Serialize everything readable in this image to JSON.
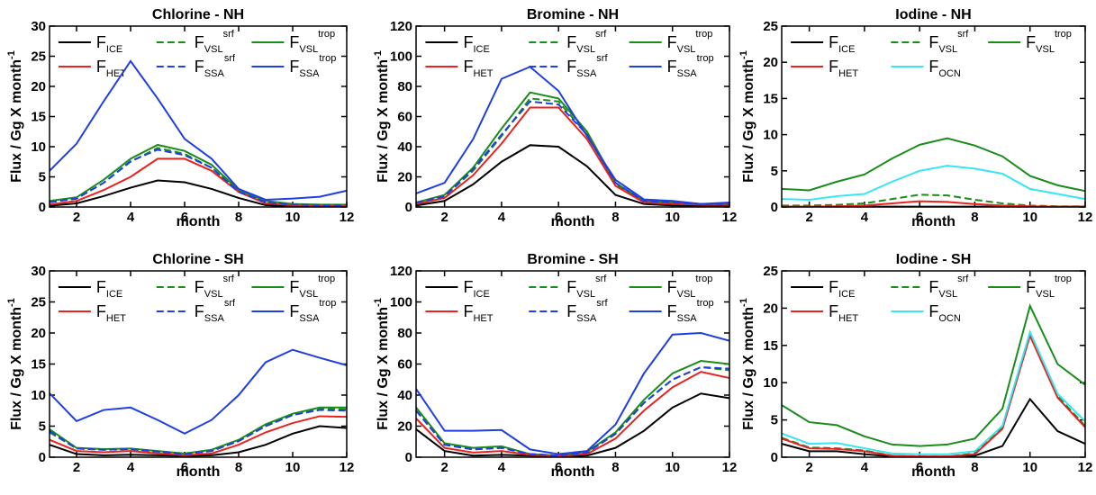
{
  "chart_data": [
    {
      "type": "line",
      "title": "Chlorine - NH",
      "xlabel": "month",
      "ylabel": "Flux / Gg X month",
      "ylabel_sup": "-1",
      "x": [
        1,
        2,
        3,
        4,
        5,
        6,
        7,
        8,
        9,
        10,
        11,
        12
      ],
      "xlim": [
        1,
        12
      ],
      "xticks": [
        2,
        4,
        6,
        8,
        10,
        12
      ],
      "ylim": [
        0,
        30
      ],
      "yticks": [
        0,
        5,
        10,
        15,
        20,
        25,
        30
      ],
      "series": [
        {
          "name": "F",
          "sub": "ICE",
          "color": "#000000",
          "dashed": false,
          "values": [
            0.2,
            0.6,
            1.8,
            3.2,
            4.4,
            4.1,
            3.0,
            1.5,
            0.3,
            0.1,
            0.1,
            0.1
          ]
        },
        {
          "name": "F",
          "sub": "VSL",
          "sup": "srf",
          "color": "#1a8c1a",
          "dashed": true,
          "values": [
            0.8,
            1.4,
            4,
            7.5,
            9.8,
            8.8,
            6.5,
            2.6,
            0.8,
            0.4,
            0.3,
            0.3
          ]
        },
        {
          "name": "F",
          "sub": "VSL",
          "sup": "trop",
          "color": "#1a8c1a",
          "dashed": false,
          "values": [
            1,
            1.6,
            4.5,
            8,
            10.3,
            9.3,
            7,
            2.8,
            1,
            0.5,
            0.4,
            0.4
          ]
        },
        {
          "name": "F",
          "sub": "HET",
          "color": "#e8231f",
          "dashed": false,
          "values": [
            0.4,
            1.0,
            2.8,
            5,
            8,
            8,
            6,
            2.5,
            0.6,
            0.3,
            0.2,
            0.2
          ]
        },
        {
          "name": "F",
          "sub": "SSA",
          "sup": "srf",
          "color": "#1f3fe0",
          "dashed": true,
          "values": [
            0.8,
            1.4,
            4,
            7.6,
            9.5,
            8.6,
            6.5,
            2.5,
            0.8,
            0.4,
            0.3,
            0.3
          ]
        },
        {
          "name": "F",
          "sub": "SSA",
          "sup": "trop",
          "color": "#1f3fe0",
          "dashed": false,
          "values": [
            6,
            10.5,
            17.5,
            24.2,
            18,
            11.3,
            8,
            3,
            1.2,
            1.4,
            1.7,
            2.7
          ]
        }
      ]
    },
    {
      "type": "line",
      "title": "Bromine - NH",
      "xlabel": "month",
      "ylabel": "Flux / Gg X month",
      "ylabel_sup": "-1",
      "x": [
        1,
        2,
        3,
        4,
        5,
        6,
        7,
        8,
        9,
        10,
        11,
        12
      ],
      "xlim": [
        1,
        12
      ],
      "xticks": [
        2,
        4,
        6,
        8,
        10,
        12
      ],
      "ylim": [
        0,
        120
      ],
      "yticks": [
        0,
        20,
        40,
        60,
        80,
        100,
        120
      ],
      "series": [
        {
          "name": "F",
          "sub": "ICE",
          "color": "#000000",
          "dashed": false,
          "values": [
            1,
            4,
            15,
            30,
            41,
            40,
            27,
            8,
            2,
            1,
            1,
            1
          ]
        },
        {
          "name": "F",
          "sub": "VSL",
          "sup": "srf",
          "color": "#1a8c1a",
          "dashed": true,
          "values": [
            3,
            7,
            24,
            47,
            72,
            70,
            48,
            15,
            4,
            3,
            2,
            2
          ]
        },
        {
          "name": "F",
          "sub": "VSL",
          "sup": "trop",
          "color": "#1a8c1a",
          "dashed": false,
          "values": [
            3,
            8,
            26,
            52,
            76,
            72,
            50,
            16,
            4,
            3,
            2,
            2
          ]
        },
        {
          "name": "F",
          "sub": "HET",
          "color": "#e8231f",
          "dashed": false,
          "values": [
            2,
            6,
            21,
            42,
            66,
            66,
            45,
            14,
            3,
            2,
            1.5,
            1.5
          ]
        },
        {
          "name": "F",
          "sub": "SSA",
          "sup": "srf",
          "color": "#1f3fe0",
          "dashed": true,
          "values": [
            3,
            7,
            25,
            48,
            70,
            68,
            48,
            16,
            4,
            3,
            2,
            2
          ]
        },
        {
          "name": "F",
          "sub": "SSA",
          "sup": "trop",
          "color": "#1f3fe0",
          "dashed": false,
          "values": [
            9,
            16,
            45,
            85,
            93,
            77,
            47,
            18,
            5,
            4,
            2,
            3
          ]
        }
      ]
    },
    {
      "type": "line",
      "title": "Iodine - NH",
      "xlabel": "month",
      "ylabel": "Flux / Gg X month",
      "ylabel_sup": "-1",
      "x": [
        1,
        2,
        3,
        4,
        5,
        6,
        7,
        8,
        9,
        10,
        11,
        12
      ],
      "xlim": [
        1,
        12
      ],
      "xticks": [
        2,
        4,
        6,
        8,
        10,
        12
      ],
      "ylim": [
        0,
        25
      ],
      "yticks": [
        0,
        5,
        10,
        15,
        20,
        25
      ],
      "series": [
        {
          "name": "F",
          "sub": "ICE",
          "color": "#000000",
          "dashed": false,
          "values": [
            0.05,
            0.05,
            0.05,
            0.05,
            0.05,
            0.05,
            0.05,
            0.05,
            0.05,
            0.05,
            0.05,
            0.05
          ]
        },
        {
          "name": "F",
          "sub": "VSL",
          "sup": "srf",
          "color": "#1a8c1a",
          "dashed": true,
          "values": [
            0.2,
            0.2,
            0.3,
            0.5,
            1.1,
            1.7,
            1.6,
            1.0,
            0.5,
            0.2,
            0.1,
            0.1
          ]
        },
        {
          "name": "F",
          "sub": "VSL",
          "sup": "trop",
          "color": "#1a8c1a",
          "dashed": false,
          "values": [
            2.5,
            2.3,
            3.5,
            4.5,
            6.7,
            8.6,
            9.5,
            8.5,
            7,
            4.3,
            3,
            2.2
          ]
        },
        {
          "name": "F",
          "sub": "HET",
          "color": "#e8231f",
          "dashed": false,
          "values": [
            0.05,
            0.05,
            0.1,
            0.2,
            0.5,
            0.8,
            0.7,
            0.4,
            0.2,
            0.1,
            0.05,
            0.05
          ]
        },
        {
          "name": "F",
          "sub": "OCN",
          "color": "#33e6f0",
          "dashed": false,
          "values": [
            1.1,
            1,
            1.5,
            1.8,
            3.5,
            5,
            5.7,
            5.3,
            4.6,
            2.5,
            1.8,
            1.1
          ]
        }
      ]
    },
    {
      "type": "line",
      "title": "Chlorine - SH",
      "xlabel": "month",
      "ylabel": "Flux / Gg X month",
      "ylabel_sup": "-1",
      "x": [
        1,
        2,
        3,
        4,
        5,
        6,
        7,
        8,
        9,
        10,
        11,
        12
      ],
      "xlim": [
        1,
        12
      ],
      "xticks": [
        2,
        4,
        6,
        8,
        10,
        12
      ],
      "ylim": [
        0,
        30
      ],
      "yticks": [
        0,
        5,
        10,
        15,
        20,
        25,
        30
      ],
      "series": [
        {
          "name": "F",
          "sub": "ICE",
          "color": "#000000",
          "dashed": false,
          "values": [
            2,
            0.5,
            0.3,
            0.4,
            0.3,
            0.2,
            0.3,
            0.8,
            2,
            3.8,
            5,
            4.7
          ]
        },
        {
          "name": "F",
          "sub": "VSL",
          "sup": "srf",
          "color": "#1a8c1a",
          "dashed": true,
          "values": [
            4,
            1.4,
            1.2,
            1.3,
            0.9,
            0.5,
            1,
            2.6,
            5,
            6.8,
            7.8,
            7.7
          ]
        },
        {
          "name": "F",
          "sub": "VSL",
          "sup": "trop",
          "color": "#1a8c1a",
          "dashed": false,
          "values": [
            4.5,
            1.5,
            1.3,
            1.4,
            1,
            0.6,
            1.2,
            2.8,
            5.3,
            7,
            8,
            8
          ]
        },
        {
          "name": "F",
          "sub": "HET",
          "color": "#e8231f",
          "dashed": false,
          "values": [
            2.8,
            1,
            0.8,
            1,
            0.6,
            0.3,
            0.6,
            2,
            4,
            5.5,
            6.6,
            6.5
          ]
        },
        {
          "name": "F",
          "sub": "SSA",
          "sup": "srf",
          "color": "#1f3fe0",
          "dashed": true,
          "values": [
            4.2,
            1.4,
            1.2,
            1.3,
            0.9,
            0.5,
            1,
            2.6,
            5,
            6.8,
            7.6,
            7.5
          ]
        },
        {
          "name": "F",
          "sub": "SSA",
          "sup": "trop",
          "color": "#1f3fe0",
          "dashed": false,
          "values": [
            10.3,
            5.8,
            7.6,
            8,
            6,
            3.8,
            6,
            10,
            15.3,
            17.3,
            16,
            14.8
          ]
        }
      ]
    },
    {
      "type": "line",
      "title": "Bromine - SH",
      "xlabel": "month",
      "ylabel": "Flux / Gg X month",
      "ylabel_sup": "-1",
      "x": [
        1,
        2,
        3,
        4,
        5,
        6,
        7,
        8,
        9,
        10,
        11,
        12
      ],
      "xlim": [
        1,
        12
      ],
      "xticks": [
        2,
        4,
        6,
        8,
        10,
        12
      ],
      "ylim": [
        0,
        120
      ],
      "yticks": [
        0,
        20,
        40,
        60,
        80,
        100,
        120
      ],
      "series": [
        {
          "name": "F",
          "sub": "ICE",
          "color": "#000000",
          "dashed": false,
          "values": [
            18,
            4,
            1,
            1.5,
            1,
            0.5,
            1,
            6,
            17,
            32,
            41,
            38
          ]
        },
        {
          "name": "F",
          "sub": "VSL",
          "sup": "srf",
          "color": "#1a8c1a",
          "dashed": true,
          "values": [
            30,
            8,
            5,
            6,
            2,
            1,
            3,
            15,
            35,
            50,
            58,
            56
          ]
        },
        {
          "name": "F",
          "sub": "VSL",
          "sup": "trop",
          "color": "#1a8c1a",
          "dashed": false,
          "values": [
            32,
            9,
            6,
            7,
            2,
            1,
            3.5,
            16,
            37,
            54,
            62,
            60
          ]
        },
        {
          "name": "F",
          "sub": "HET",
          "color": "#e8231f",
          "dashed": false,
          "values": [
            25,
            6,
            3,
            4,
            1.5,
            0.8,
            2,
            12,
            30,
            45,
            55,
            51
          ]
        },
        {
          "name": "F",
          "sub": "SSA",
          "sup": "srf",
          "color": "#1f3fe0",
          "dashed": true,
          "values": [
            30,
            8,
            5,
            6,
            2,
            1,
            3,
            15,
            35,
            50,
            58,
            57
          ]
        },
        {
          "name": "F",
          "sub": "SSA",
          "sup": "trop",
          "color": "#1f3fe0",
          "dashed": false,
          "values": [
            44,
            17,
            17,
            17.5,
            5,
            2,
            4,
            21,
            54,
            79,
            80,
            75
          ]
        }
      ]
    },
    {
      "type": "line",
      "title": "Iodine - SH",
      "xlabel": "month",
      "ylabel": "Flux / Gg X month",
      "ylabel_sup": "-1",
      "x": [
        1,
        2,
        3,
        4,
        5,
        6,
        7,
        8,
        9,
        10,
        11,
        12
      ],
      "xlim": [
        1,
        12
      ],
      "xticks": [
        2,
        4,
        6,
        8,
        10,
        12
      ],
      "ylim": [
        0,
        25
      ],
      "yticks": [
        0,
        5,
        10,
        15,
        20,
        25
      ],
      "series": [
        {
          "name": "F",
          "sub": "ICE",
          "color": "#000000",
          "dashed": false,
          "values": [
            1.8,
            0.8,
            0.8,
            0.4,
            0.1,
            0.05,
            0.05,
            0.2,
            1.5,
            7.8,
            3.5,
            1.8
          ]
        },
        {
          "name": "F",
          "sub": "VSL",
          "sup": "srf",
          "color": "#1a8c1a",
          "dashed": true,
          "values": [
            2.6,
            1.3,
            1.2,
            0.9,
            0.2,
            0.1,
            0.1,
            0.5,
            4,
            16.5,
            8.2,
            4.2
          ]
        },
        {
          "name": "F",
          "sub": "VSL",
          "sup": "trop",
          "color": "#1a8c1a",
          "dashed": false,
          "values": [
            7,
            4.7,
            4.3,
            2.8,
            1.7,
            1.5,
            1.7,
            2.5,
            6.5,
            20.3,
            12.5,
            9.7
          ]
        },
        {
          "name": "F",
          "sub": "HET",
          "color": "#e8231f",
          "dashed": false,
          "values": [
            2.5,
            1.2,
            1.1,
            0.8,
            0.2,
            0.1,
            0.1,
            0.4,
            3.8,
            16.3,
            8,
            4
          ]
        },
        {
          "name": "F",
          "sub": "OCN",
          "color": "#33e6f0",
          "dashed": false,
          "values": [
            3.2,
            1.8,
            1.9,
            1.2,
            0.5,
            0.4,
            0.4,
            0.8,
            4.2,
            16.8,
            8.5,
            4.8
          ]
        }
      ]
    }
  ]
}
